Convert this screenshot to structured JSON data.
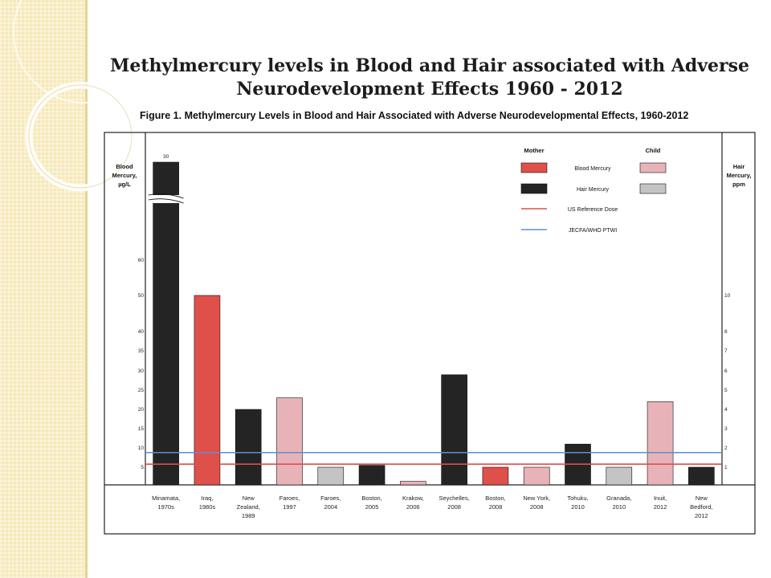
{
  "slide": {
    "title_line1": "Methylmercury levels in Blood and Hair associated with Adverse",
    "title_line2": "Neurodevelopment Effects 1960 - 2012"
  },
  "chart_data": {
    "type": "bar",
    "title": "Figure 1. Methylmercury Levels in Blood and Hair Associated with Adverse Neurodevelopmental Effects, 1960-2012",
    "left_axis_label": [
      "Blood",
      "Mercury,",
      "µg/L"
    ],
    "right_axis_label": [
      "Hair",
      "Mercury,",
      "ppm"
    ],
    "left_ticks": [
      "5",
      "10",
      "15",
      "20",
      "25",
      "30",
      "35",
      "40",
      "50",
      "60"
    ],
    "right_ticks": [
      "1",
      "2",
      "3",
      "4",
      "5",
      "6",
      "7",
      "8",
      "10"
    ],
    "break_label": "30",
    "categories": [
      [
        "Minamata,",
        "1970s"
      ],
      [
        "Iraq,",
        "1980s"
      ],
      [
        "New",
        "Zealand,",
        "1989"
      ],
      [
        "Faroes,",
        "1997"
      ],
      [
        "Faroes,",
        "2004"
      ],
      [
        "Boston,",
        "2005"
      ],
      [
        "Krakow,",
        "2006"
      ],
      [
        "Seychelles,",
        "2008"
      ],
      [
        "Boston,",
        "2008"
      ],
      [
        "New York,",
        "2008"
      ],
      [
        "Tohuku,",
        "2010"
      ],
      [
        "Granada,",
        "2010"
      ],
      [
        "Inuit,",
        "2012"
      ],
      [
        "New",
        "Bedford,",
        "2012"
      ]
    ],
    "bars": [
      {
        "group": "Mother",
        "measure": "Hair Mercury",
        "value_ppm": 30,
        "axis_break": true
      },
      {
        "group": "Mother",
        "measure": "Blood Mercury",
        "value_ugL": 50
      },
      {
        "group": "Mother",
        "measure": "Hair Mercury",
        "value_ppm": 4
      },
      {
        "group": "Child",
        "measure": "Blood Mercury",
        "value_ugL": 23
      },
      {
        "group": "Child",
        "measure": "Hair Mercury",
        "value_ppm": 1
      },
      {
        "group": "Mother",
        "measure": "Hair Mercury",
        "value_ppm": 1.1
      },
      {
        "group": "Child",
        "measure": "Blood Mercury",
        "value_ugL": 1
      },
      {
        "group": "Mother",
        "measure": "Hair Mercury",
        "value_ppm": 5.8
      },
      {
        "group": "Mother",
        "measure": "Blood Mercury",
        "value_ugL": 5
      },
      {
        "group": "Child",
        "measure": "Blood Mercury",
        "value_ugL": 5
      },
      {
        "group": "Mother",
        "measure": "Hair Mercury",
        "value_ppm": 2.2
      },
      {
        "group": "Child",
        "measure": "Hair Mercury",
        "value_ppm": 1
      },
      {
        "group": "Child",
        "measure": "Blood Mercury",
        "value_ugL": 22
      },
      {
        "group": "Mother",
        "measure": "Hair Mercury",
        "value_ppm": 1
      }
    ],
    "reference_lines": [
      {
        "name": "US Reference Dose",
        "value_ugL": 5.8,
        "color": "#d9504d"
      },
      {
        "name": "JECFA/WHO PTWI",
        "value_ugL": 8.8,
        "color": "#5b8fd0"
      }
    ],
    "legend": {
      "mother_header": "Mother",
      "child_header": "Child",
      "rows": [
        {
          "label": "Blood Mercury",
          "mother_color": "#e0504a",
          "child_color": "#e8b3b8"
        },
        {
          "label": "Hair Mercury",
          "mother_color": "#242424",
          "child_color": "#c4c4c4"
        }
      ],
      "line_rows": [
        "US Reference Dose",
        "JECFA/WHO PTWI"
      ]
    },
    "colors": {
      "mother_blood": "#e0504a",
      "mother_hair": "#242424",
      "child_blood": "#e8b3b8",
      "child_hair": "#c4c4c4",
      "us_rfd": "#d9504d",
      "jecfa": "#5b8fd0"
    }
  }
}
